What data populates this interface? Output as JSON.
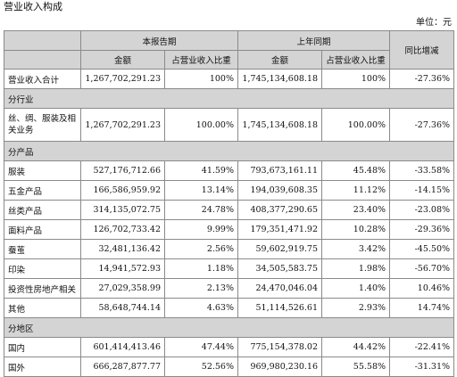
{
  "title": "营业收入构成",
  "unit": "单位：元",
  "header": {
    "current_period": "本报告期",
    "prior_period": "上年同期",
    "yoy_change": "同比增减",
    "amount": "金额",
    "share": "占营业收入比重"
  },
  "rows": [
    {
      "type": "data",
      "label": "营业收入合计",
      "cur_amount": "1,267,702,291.23",
      "cur_share": "100%",
      "prev_amount": "1,745,134,608.18",
      "prev_share": "100%",
      "change": "-27.36%"
    },
    {
      "type": "section",
      "label": "分行业"
    },
    {
      "type": "data",
      "label": "丝、绸、服装及相关业务",
      "cur_amount": "1,267,702,291.23",
      "cur_share": "100.00%",
      "prev_amount": "1,745,134,608.18",
      "prev_share": "100.00%",
      "change": "-27.36%",
      "wrap": true
    },
    {
      "type": "section",
      "label": "分产品"
    },
    {
      "type": "data",
      "label": "服装",
      "cur_amount": "527,176,712.66",
      "cur_share": "41.59%",
      "prev_amount": "793,673,161.11",
      "prev_share": "45.48%",
      "change": "-33.58%"
    },
    {
      "type": "data",
      "label": "五金产品",
      "cur_amount": "166,586,959.92",
      "cur_share": "13.14%",
      "prev_amount": "194,039,608.35",
      "prev_share": "11.12%",
      "change": "-14.15%"
    },
    {
      "type": "data",
      "label": "丝类产品",
      "cur_amount": "314,135,072.75",
      "cur_share": "24.78%",
      "prev_amount": "408,377,290.65",
      "prev_share": "23.40%",
      "change": "-23.08%"
    },
    {
      "type": "data",
      "label": "面料产品",
      "cur_amount": "126,702,733.42",
      "cur_share": "9.99%",
      "prev_amount": "179,351,471.92",
      "prev_share": "10.28%",
      "change": "-29.36%"
    },
    {
      "type": "data",
      "label": "蚕茧",
      "cur_amount": "32,481,136.42",
      "cur_share": "2.56%",
      "prev_amount": "59,602,919.75",
      "prev_share": "3.42%",
      "change": "-45.50%"
    },
    {
      "type": "data",
      "label": "印染",
      "cur_amount": "14,941,572.93",
      "cur_share": "1.18%",
      "prev_amount": "34,505,583.75",
      "prev_share": "1.98%",
      "change": "-56.70%"
    },
    {
      "type": "data",
      "label": "投资性房地产相关",
      "cur_amount": "27,029,358.99",
      "cur_share": "2.13%",
      "prev_amount": "24,470,046.04",
      "prev_share": "1.40%",
      "change": "10.46%"
    },
    {
      "type": "data",
      "label": "其他",
      "cur_amount": "58,648,744.14",
      "cur_share": "4.63%",
      "prev_amount": "51,114,526.61",
      "prev_share": "2.93%",
      "change": "14.74%"
    },
    {
      "type": "section",
      "label": "分地区"
    },
    {
      "type": "data",
      "label": "国内",
      "cur_amount": "601,414,413.46",
      "cur_share": "47.44%",
      "prev_amount": "775,154,378.02",
      "prev_share": "44.42%",
      "change": "-22.41%"
    },
    {
      "type": "data",
      "label": "国外",
      "cur_amount": "666,287,877.77",
      "cur_share": "52.56%",
      "prev_amount": "969,980,230.16",
      "prev_share": "55.58%",
      "change": "-31.31%"
    }
  ]
}
